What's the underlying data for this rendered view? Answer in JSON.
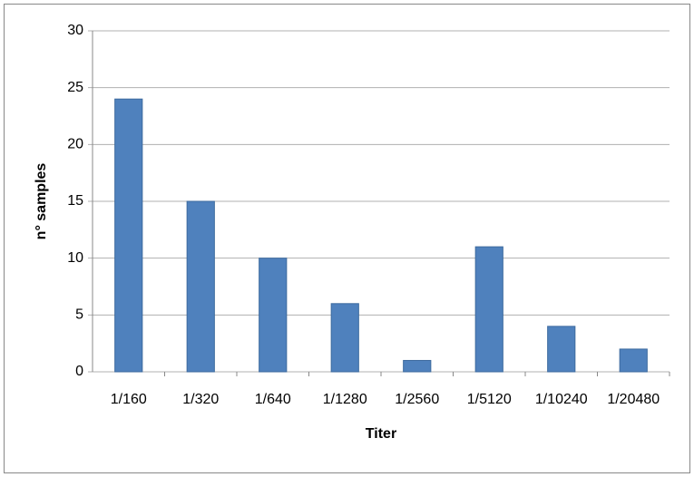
{
  "chart_data": {
    "type": "bar",
    "categories": [
      "1/160",
      "1/320",
      "1/640",
      "1/1280",
      "1/2560",
      "1/5120",
      "1/10240",
      "1/20480"
    ],
    "values": [
      24,
      15,
      10,
      6,
      1,
      11,
      4,
      2
    ],
    "color": "#4f81bd",
    "x_label": "Titer",
    "y_label": "n° samples",
    "ylim": [
      0,
      30
    ],
    "yticks": [
      0,
      5,
      10,
      15,
      20,
      25,
      30
    ],
    "grid": true
  }
}
